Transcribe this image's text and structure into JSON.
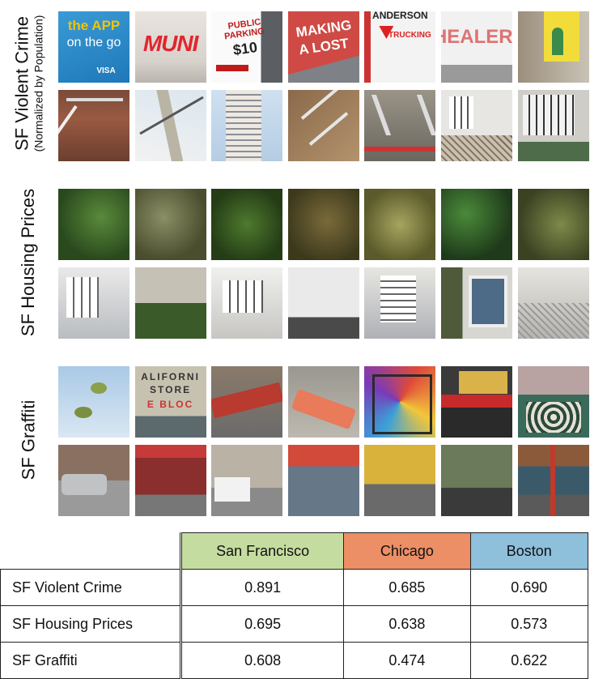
{
  "rows": [
    {
      "title": "SF Violent Crime",
      "subtitle": "(Normalized by Population)"
    },
    {
      "title": "SF Housing Prices",
      "subtitle": ""
    },
    {
      "title": "SF Graffiti",
      "subtitle": ""
    }
  ],
  "overlays": {
    "app_line1": "the APP",
    "app_line2": "on the go",
    "app_visa": "VISA",
    "muni": "MUNI",
    "parking_line1": "PUBLIC",
    "parking_line2": "PARKING",
    "parking_price": "$10",
    "making_line1": "MAKING",
    "making_line2": "A LOST",
    "trucking_top": "ANDERSON",
    "trucking": "TRUCKING",
    "healer": "HEALER",
    "california_line1": "ALIFORNI",
    "california_line2": "STORE",
    "california_line3": "E BLOC"
  },
  "table": {
    "headers": [
      "San Francisco",
      "Chicago",
      "Boston"
    ],
    "header_colors": [
      "#c5dca0",
      "#ec8e66",
      "#8ebfdb"
    ],
    "rows": [
      {
        "label": "SF Violent Crime",
        "values": [
          "0.891",
          "0.685",
          "0.690"
        ]
      },
      {
        "label": "SF Housing Prices",
        "values": [
          "0.695",
          "0.638",
          "0.573"
        ]
      },
      {
        "label": "SF Graffiti",
        "values": [
          "0.608",
          "0.474",
          "0.622"
        ]
      }
    ]
  }
}
